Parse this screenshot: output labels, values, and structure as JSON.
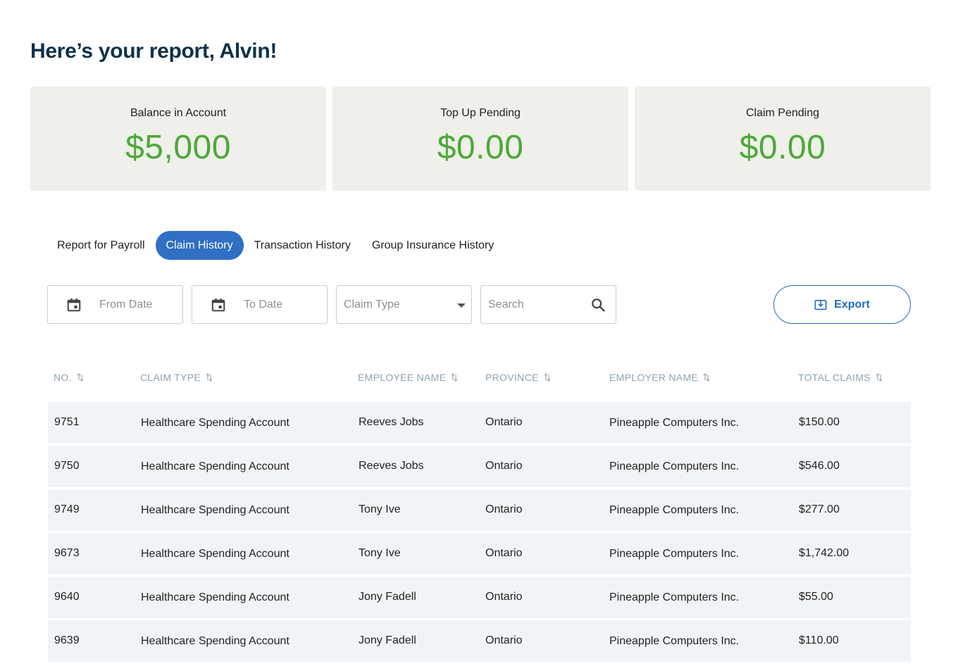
{
  "header": {
    "title": "Here’s your report, Alvin!"
  },
  "cards": [
    {
      "label": "Balance in Account",
      "value": "$5,000"
    },
    {
      "label": "Top Up Pending",
      "value": "$0.00"
    },
    {
      "label": "Claim Pending",
      "value": "$0.00"
    }
  ],
  "tabs": [
    {
      "label": "Report for Payroll"
    },
    {
      "label": "Claim History",
      "active": true
    },
    {
      "label": "Transaction History"
    },
    {
      "label": "Group Insurance History"
    }
  ],
  "filters": {
    "from_date": {
      "placeholder": "From Date",
      "icon": "calendar-icon"
    },
    "to_date": {
      "placeholder": "To Date",
      "icon": "calendar-icon"
    },
    "claim_type": {
      "placeholder": "Claim Type",
      "icon": "caret-down-icon"
    },
    "search": {
      "placeholder": "Search",
      "icon": "search-icon"
    }
  },
  "export": {
    "label": "Export",
    "icon": "download-icon"
  },
  "table": {
    "columns": [
      "NO.",
      "CLAIM TYPE",
      "EMPLOYEE NAME",
      "PROVINCE",
      "EMPLOYER NAME",
      "TOTAL CLAIMS"
    ],
    "rows": [
      [
        "9751",
        "Healthcare Spending Account",
        "Reeves Jobs",
        "Ontario",
        "Pineapple Computers Inc.",
        "$150.00"
      ],
      [
        "9750",
        "Healthcare Spending Account",
        "Reeves Jobs",
        "Ontario",
        "Pineapple Computers Inc.",
        "$546.00"
      ],
      [
        "9749",
        "Healthcare Spending Account",
        "Tony Ive",
        "Ontario",
        "Pineapple Computers Inc.",
        "$277.00"
      ],
      [
        "9673",
        "Healthcare Spending Account",
        "Tony Ive",
        "Ontario",
        "Pineapple Computers Inc.",
        "$1,742.00"
      ],
      [
        "9640",
        "Healthcare Spending Account",
        "Jony Fadell",
        "Ontario",
        "Pineapple Computers Inc.",
        "$55.00"
      ],
      [
        "9639",
        "Healthcare Spending Account",
        "Jony Fadell",
        "Ontario",
        "Pineapple Computers Inc.",
        "$110.00"
      ]
    ]
  },
  "colors": {
    "accent": "#2f6fc4",
    "money": "#4ea83a",
    "title": "#0e3149",
    "card_bg": "#eef0e9",
    "row_bg": "#f1f4f6"
  }
}
